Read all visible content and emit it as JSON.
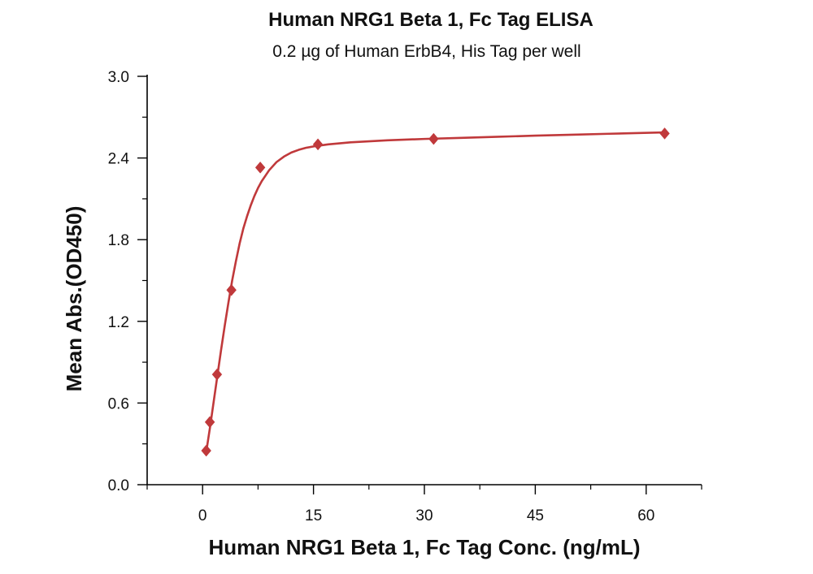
{
  "chart_data": {
    "type": "scatter",
    "title": "Human NRG1 Beta 1, Fc Tag ELISA",
    "subtitle": "0.2 µg of Human ErbB4, His Tag per well",
    "xlabel": "Human NRG1 Beta 1, Fc Tag Conc. (ng/mL)",
    "ylabel": "Mean Abs.(OD450)",
    "xlim": [
      -7.5,
      67.5
    ],
    "ylim": [
      0,
      3.0
    ],
    "x_ticks": [
      0,
      15,
      30,
      45,
      60
    ],
    "y_ticks": [
      0.0,
      0.6,
      1.2,
      1.8,
      2.4,
      3.0
    ],
    "x_tick_labels": [
      "0",
      "15",
      "30",
      "45",
      "60"
    ],
    "y_tick_labels": [
      "0.0",
      "0.6",
      "1.2",
      "1.8",
      "2.4",
      "3.0"
    ],
    "grid": false,
    "series": [
      {
        "marker": "diamond",
        "color": "#c0393b",
        "x": [
          0.49,
          0.98,
          1.95,
          3.9,
          7.8,
          15.6,
          31.25,
          62.5
        ],
        "y": [
          0.25,
          0.46,
          0.81,
          1.43,
          2.33,
          2.5,
          2.54,
          2.58
        ]
      }
    ],
    "fit_curve": {
      "color": "#c0393b",
      "x": [
        0.49,
        1.0,
        1.5,
        2.0,
        2.5,
        3.0,
        3.5,
        4.0,
        4.5,
        5.0,
        5.5,
        6.0,
        6.5,
        7.0,
        7.5,
        8.0,
        9.0,
        10.0,
        11.0,
        12.0,
        13.0,
        14.0,
        15.0,
        17.0,
        20.0,
        25.0,
        30.0,
        35.0,
        40.0,
        45.0,
        50.0,
        55.0,
        62.5
      ],
      "y": [
        0.24,
        0.42,
        0.61,
        0.8,
        0.99,
        1.17,
        1.34,
        1.5,
        1.64,
        1.77,
        1.88,
        1.97,
        2.05,
        2.12,
        2.18,
        2.23,
        2.31,
        2.37,
        2.41,
        2.44,
        2.46,
        2.475,
        2.485,
        2.5,
        2.515,
        2.53,
        2.54,
        2.548,
        2.556,
        2.564,
        2.571,
        2.578,
        2.588
      ]
    }
  }
}
